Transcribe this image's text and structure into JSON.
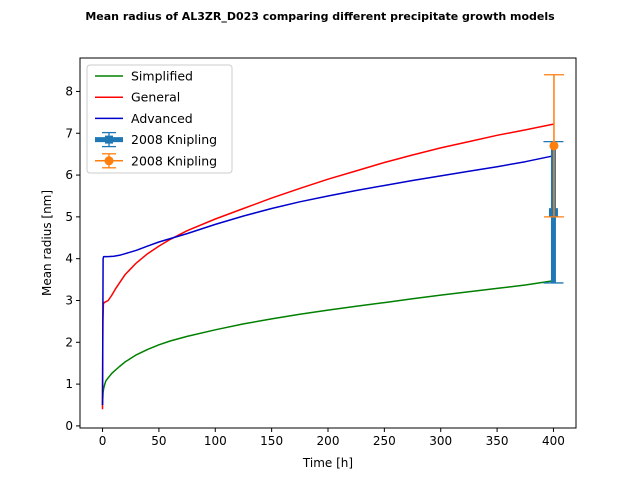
{
  "chart_data": {
    "type": "line",
    "title": "Mean radius of AL3ZR_D023 comparing different precipitate growth models",
    "xlabel": "Time [h]",
    "ylabel": "Mean radius [nm]",
    "xlim": [
      -20,
      420
    ],
    "ylim": [
      -0.05,
      8.8
    ],
    "xticks": [
      0,
      50,
      100,
      150,
      200,
      250,
      300,
      350,
      400
    ],
    "yticks": [
      0,
      1,
      2,
      3,
      4,
      5,
      6,
      7,
      8
    ],
    "grid": false,
    "legend_position": "upper-left",
    "series": [
      {
        "name": "Simplified",
        "kind": "line",
        "color": "#008000",
        "x": [
          0,
          0.5,
          1,
          2,
          3,
          5,
          8,
          10,
          15,
          20,
          30,
          40,
          50,
          60,
          75,
          100,
          125,
          150,
          175,
          200,
          225,
          250,
          275,
          300,
          325,
          350,
          375,
          400
        ],
        "y": [
          0.5,
          0.8,
          0.9,
          1.0,
          1.08,
          1.15,
          1.25,
          1.3,
          1.42,
          1.53,
          1.7,
          1.83,
          1.94,
          2.03,
          2.14,
          2.3,
          2.44,
          2.56,
          2.67,
          2.77,
          2.86,
          2.95,
          3.04,
          3.13,
          3.21,
          3.29,
          3.37,
          3.47
        ]
      },
      {
        "name": "General",
        "kind": "line",
        "color": "#ff0000",
        "x": [
          0,
          0.3,
          0.8,
          1.5,
          3,
          5,
          8,
          12,
          20,
          30,
          40,
          50,
          60,
          75,
          100,
          125,
          150,
          175,
          200,
          225,
          250,
          275,
          300,
          325,
          350,
          375,
          400
        ],
        "y": [
          0.4,
          2.5,
          2.92,
          2.95,
          2.97,
          3.0,
          3.12,
          3.3,
          3.62,
          3.9,
          4.12,
          4.3,
          4.46,
          4.67,
          4.95,
          5.2,
          5.45,
          5.68,
          5.9,
          6.1,
          6.3,
          6.48,
          6.65,
          6.8,
          6.95,
          7.08,
          7.22
        ]
      },
      {
        "name": "Advanced",
        "kind": "line",
        "color": "#0000cc",
        "x": [
          0,
          0.5,
          1,
          3,
          5,
          10,
          15,
          20,
          30,
          40,
          50,
          60,
          75,
          100,
          125,
          150,
          175,
          200,
          225,
          250,
          275,
          300,
          325,
          350,
          375,
          400
        ],
        "y": [
          0.5,
          4.0,
          4.05,
          4.05,
          4.05,
          4.06,
          4.08,
          4.12,
          4.2,
          4.3,
          4.4,
          4.48,
          4.6,
          4.82,
          5.02,
          5.2,
          5.36,
          5.5,
          5.63,
          5.75,
          5.87,
          5.98,
          6.09,
          6.2,
          6.32,
          6.46
        ]
      },
      {
        "name": "2008 Knipling",
        "kind": "errorbar",
        "color": "#1f77b4",
        "marker": "square",
        "x": [
          400
        ],
        "y": [
          5.1
        ],
        "yerr_low": [
          3.42
        ],
        "yerr_high": [
          6.8
        ]
      },
      {
        "name": "2008 Knipling",
        "kind": "errorbar",
        "color": "#ff7f0e",
        "marker": "circle",
        "x": [
          400
        ],
        "y": [
          6.7
        ],
        "yerr_low": [
          5.0
        ],
        "yerr_high": [
          8.4
        ]
      }
    ]
  }
}
